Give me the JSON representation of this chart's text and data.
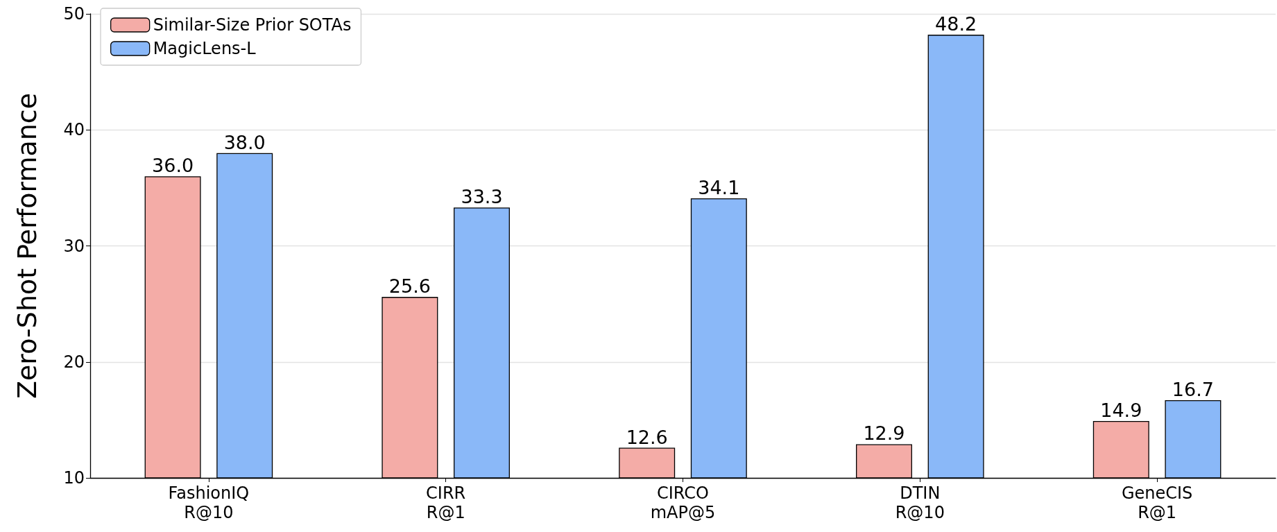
{
  "chart_data": {
    "type": "bar",
    "ylabel": "Zero-Shot Performance",
    "categories": [
      "FashionIQ\nR@10",
      "CIRR\nR@1",
      "CIRCO\nmAP@5",
      "DTIN\nR@10",
      "GeneCIS\nR@1"
    ],
    "series": [
      {
        "name": "Similar-Size Prior SOTAs",
        "color": "#f4aca7",
        "values": [
          36.0,
          25.6,
          12.6,
          12.9,
          14.9
        ],
        "value_labels": [
          "36.0",
          "25.6",
          "12.6",
          "12.9",
          "14.9"
        ]
      },
      {
        "name": "MagicLens-L",
        "color": "#8ab8f8",
        "values": [
          38.0,
          33.3,
          34.1,
          48.2,
          16.7
        ],
        "value_labels": [
          "38.0",
          "33.3",
          "34.1",
          "48.2",
          "16.7"
        ]
      }
    ],
    "ylim": [
      10,
      50
    ],
    "yticks": [
      10,
      20,
      30,
      40,
      50
    ],
    "grid": "y",
    "legend": "top left"
  }
}
